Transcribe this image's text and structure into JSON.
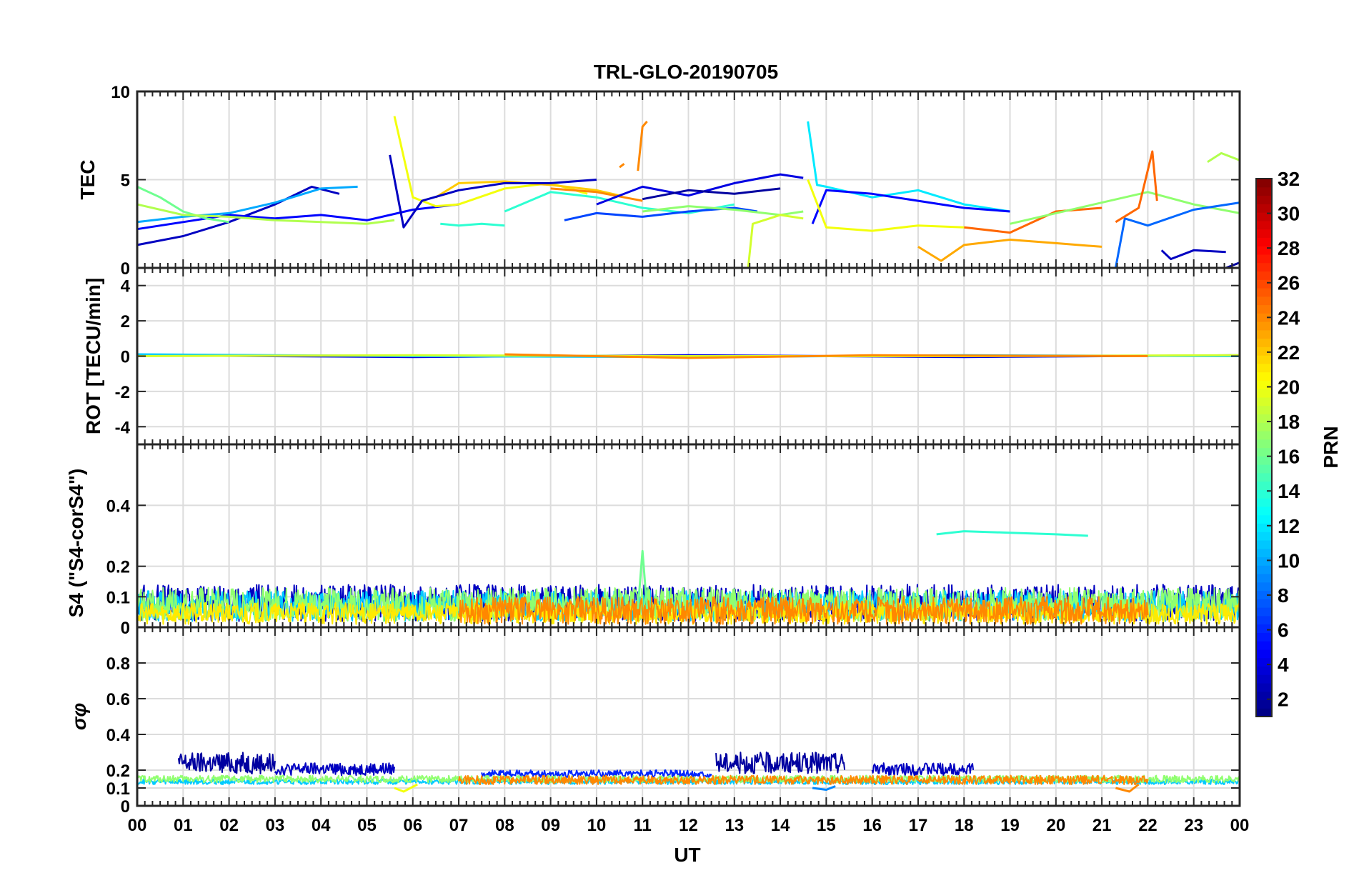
{
  "chart_data": {
    "type": "line",
    "title": "TRL-GLO-20190705",
    "xlabel": "UT",
    "x_ticks": [
      "00",
      "01",
      "02",
      "03",
      "04",
      "05",
      "06",
      "07",
      "08",
      "09",
      "10",
      "11",
      "12",
      "13",
      "14",
      "15",
      "16",
      "17",
      "18",
      "19",
      "20",
      "21",
      "22",
      "23",
      "00"
    ],
    "xlim": [
      0,
      24
    ],
    "grid": true,
    "colorbar": {
      "label": "PRN",
      "ticks": [
        "2",
        "4",
        "6",
        "8",
        "10",
        "12",
        "14",
        "16",
        "18",
        "20",
        "22",
        "24",
        "26",
        "28",
        "30",
        "32"
      ],
      "range": [
        1,
        32
      ],
      "colormap": "jet"
    },
    "panels": [
      {
        "id": "tec",
        "ylabel": "TEC",
        "ylim": [
          0,
          10
        ],
        "y_ticks": [
          "0",
          "5",
          "10"
        ],
        "tick_values": [
          0,
          5,
          10
        ],
        "series": [
          {
            "prn": 3,
            "x": [
              0,
              1,
              2,
              3,
              3.8,
              4.4
            ],
            "y": [
              1.3,
              1.8,
              2.6,
              3.6,
              4.6,
              4.2
            ]
          },
          {
            "prn": 5,
            "x": [
              0,
              1,
              2,
              3,
              4,
              5,
              6,
              7
            ],
            "y": [
              2.2,
              2.6,
              3.0,
              2.8,
              3.0,
              2.7,
              3.3,
              3.6
            ]
          },
          {
            "prn": 10,
            "x": [
              0,
              1,
              2,
              3,
              4,
              4.8
            ],
            "y": [
              2.6,
              2.9,
              3.1,
              3.7,
              4.5,
              4.6
            ]
          },
          {
            "prn": 16,
            "x": [
              0,
              0.5,
              1,
              1.5,
              2
            ],
            "y": [
              4.6,
              4.0,
              3.2,
              2.8,
              2.6
            ]
          },
          {
            "prn": 18,
            "x": [
              0,
              1,
              2,
              3,
              4,
              5,
              5.6
            ],
            "y": [
              3.6,
              3.0,
              2.9,
              2.7,
              2.6,
              2.5,
              2.7
            ]
          },
          {
            "prn": 20,
            "x": [
              5.6,
              6,
              6.5,
              7,
              8,
              9,
              9.8
            ],
            "y": [
              8.6,
              4.0,
              3.5,
              3.6,
              4.5,
              4.8,
              4.2
            ]
          },
          {
            "prn": 22,
            "x": [
              6.5,
              7,
              8,
              9,
              10,
              10.5
            ],
            "y": [
              4.0,
              4.8,
              4.9,
              4.7,
              4.4,
              4.1
            ]
          },
          {
            "prn": 3,
            "x": [
              5.5,
              5.8,
              6.2,
              7,
              8,
              9,
              10
            ],
            "y": [
              6.4,
              2.3,
              3.8,
              4.4,
              4.8,
              4.8,
              5.0
            ]
          },
          {
            "prn": 14,
            "x": [
              6.6,
              7,
              7.5,
              8
            ],
            "y": [
              2.5,
              2.4,
              2.5,
              2.4
            ]
          },
          {
            "prn": 14,
            "x": [
              8,
              9,
              10,
              11,
              12,
              13
            ],
            "y": [
              3.2,
              4.3,
              4.0,
              3.4,
              3.1,
              3.6
            ]
          },
          {
            "prn": 24,
            "x": [
              9,
              10,
              11
            ],
            "y": [
              4.5,
              4.3,
              3.8
            ]
          },
          {
            "prn": 24,
            "x": [
              10.5,
              10.6
            ],
            "y": [
              5.7,
              5.9
            ]
          },
          {
            "prn": 24,
            "x": [
              10.9,
              11.0,
              11.1
            ],
            "y": [
              5.5,
              8.0,
              8.3
            ]
          },
          {
            "prn": 7,
            "x": [
              9.3,
              10,
              11,
              12,
              13,
              13.5
            ],
            "y": [
              2.7,
              3.1,
              2.9,
              3.2,
              3.4,
              3.2
            ]
          },
          {
            "prn": 4,
            "x": [
              10,
              11,
              12,
              13,
              14,
              14.5
            ],
            "y": [
              3.6,
              4.6,
              4.1,
              4.8,
              5.3,
              5.1
            ]
          },
          {
            "prn": 2,
            "x": [
              11,
              12,
              13,
              14
            ],
            "y": [
              3.9,
              4.4,
              4.2,
              4.5
            ]
          },
          {
            "prn": 17,
            "x": [
              11,
              12,
              13,
              14,
              14.5
            ],
            "y": [
              3.2,
              3.5,
              3.3,
              3.0,
              3.2
            ]
          },
          {
            "prn": 19,
            "x": [
              13.3,
              13.4,
              14,
              14.5
            ],
            "y": [
              0.0,
              2.5,
              3.0,
              2.8
            ]
          },
          {
            "prn": 12,
            "x": [
              14.6,
              14.8,
              15,
              16,
              17,
              18,
              19
            ],
            "y": [
              8.3,
              4.7,
              4.6,
              4.0,
              4.4,
              3.6,
              3.2
            ]
          },
          {
            "prn": 5,
            "x": [
              14.7,
              15,
              16,
              17,
              18,
              19
            ],
            "y": [
              2.5,
              4.4,
              4.2,
              3.8,
              3.4,
              3.2
            ]
          },
          {
            "prn": 20,
            "x": [
              14.6,
              15,
              16,
              17,
              18
            ],
            "y": [
              5.0,
              2.3,
              2.1,
              2.4,
              2.3
            ]
          },
          {
            "prn": 23,
            "x": [
              17,
              17.5,
              18,
              19,
              20,
              21
            ],
            "y": [
              1.2,
              0.4,
              1.3,
              1.6,
              1.4,
              1.2
            ]
          },
          {
            "prn": 25,
            "x": [
              18,
              19,
              20,
              21
            ],
            "y": [
              2.3,
              2.0,
              3.2,
              3.4
            ]
          },
          {
            "prn": 17,
            "x": [
              19,
              20,
              21,
              22,
              23,
              24
            ],
            "y": [
              2.5,
              3.1,
              3.7,
              4.3,
              3.6,
              3.1
            ]
          },
          {
            "prn": 8,
            "x": [
              21.3,
              21.5,
              22,
              23,
              24
            ],
            "y": [
              0.0,
              2.8,
              2.4,
              3.3,
              3.7
            ]
          },
          {
            "prn": 25,
            "x": [
              21.3,
              21.8,
              22.1,
              22.2
            ],
            "y": [
              2.6,
              3.4,
              6.6,
              3.8
            ]
          },
          {
            "prn": 3,
            "x": [
              22.3,
              22.5,
              23,
              23.7
            ],
            "y": [
              1.0,
              0.5,
              1.0,
              0.9
            ]
          },
          {
            "prn": 18,
            "x": [
              23.3,
              23.6,
              24
            ],
            "y": [
              6.0,
              6.5,
              6.1
            ]
          },
          {
            "prn": 2,
            "x": [
              23.7,
              24
            ],
            "y": [
              0.0,
              0.3
            ]
          }
        ]
      },
      {
        "id": "rot",
        "ylabel": "ROT [TECU/min]",
        "ylim": [
          -5,
          5
        ],
        "y_ticks": [
          "-4",
          "-2",
          "0",
          "2",
          "4"
        ],
        "tick_values": [
          -4,
          -2,
          0,
          2,
          4
        ],
        "series": [
          {
            "prn": 4,
            "x": [
              0,
              6,
              12,
              18,
              24
            ],
            "y": [
              0.05,
              -0.05,
              0.05,
              -0.05,
              0.05
            ]
          },
          {
            "prn": 11,
            "x": [
              0,
              6,
              12,
              18,
              24
            ],
            "y": [
              0.1,
              0.0,
              -0.05,
              0.05,
              0.0
            ]
          },
          {
            "prn": 19,
            "x": [
              0,
              6,
              12,
              18,
              24
            ],
            "y": [
              0.0,
              0.05,
              0.0,
              0.0,
              0.05
            ]
          },
          {
            "prn": 24,
            "x": [
              8,
              12,
              16,
              22
            ],
            "y": [
              0.1,
              -0.1,
              0.05,
              0.0
            ]
          }
        ]
      },
      {
        "id": "s4",
        "ylabel": "S4 (\"S4-corS4\")",
        "ylim": [
          0,
          0.6
        ],
        "y_ticks": [
          "0",
          "0.1",
          "0.2",
          "0.4"
        ],
        "tick_values": [
          0,
          0.1,
          0.2,
          0.4
        ],
        "band_series": [
          {
            "prn": 3,
            "x": [
              0,
              24
            ],
            "y_low": 0.02,
            "y_high": 0.14
          },
          {
            "prn": 11,
            "x": [
              0,
              24
            ],
            "y_low": 0.02,
            "y_high": 0.12
          },
          {
            "prn": 17,
            "x": [
              0,
              24
            ],
            "y_low": 0.02,
            "y_high": 0.13
          },
          {
            "prn": 21,
            "x": [
              0,
              24
            ],
            "y_low": 0.01,
            "y_high": 0.08
          },
          {
            "prn": 24,
            "x": [
              7,
              22
            ],
            "y_low": 0.01,
            "y_high": 0.1
          }
        ],
        "series": [
          {
            "prn": 14,
            "x": [
              17.4,
              18,
              19,
              20,
              20.7
            ],
            "y": [
              0.305,
              0.315,
              0.31,
              0.305,
              0.3
            ]
          },
          {
            "prn": 16,
            "x": [
              10.9,
              11,
              11.1
            ],
            "y": [
              0.06,
              0.25,
              0.06
            ]
          }
        ]
      },
      {
        "id": "sigma",
        "ylabel": "σφ",
        "ylim": [
          0,
          1
        ],
        "y_ticks": [
          "0",
          "0.1",
          "0.2",
          "0.4",
          "0.6",
          "0.8"
        ],
        "tick_values": [
          0,
          0.1,
          0.2,
          0.4,
          0.6,
          0.8
        ],
        "band_series": [
          {
            "prn": 2,
            "x": [
              0.9,
              3
            ],
            "y_low": 0.18,
            "y_high": 0.3
          },
          {
            "prn": 2,
            "x": [
              12.6,
              15.4
            ],
            "y_low": 0.18,
            "y_high": 0.3
          },
          {
            "prn": 3,
            "x": [
              3,
              5.6
            ],
            "y_low": 0.17,
            "y_high": 0.24
          },
          {
            "prn": 3,
            "x": [
              16,
              18.2
            ],
            "y_low": 0.17,
            "y_high": 0.24
          },
          {
            "prn": 6,
            "x": [
              7.5,
              12.5
            ],
            "y_low": 0.16,
            "y_high": 0.2
          },
          {
            "prn": 11,
            "x": [
              0,
              24
            ],
            "y_low": 0.12,
            "y_high": 0.15
          },
          {
            "prn": 17,
            "x": [
              0,
              24
            ],
            "y_low": 0.13,
            "y_high": 0.17
          },
          {
            "prn": 24,
            "x": [
              7,
              22
            ],
            "y_low": 0.12,
            "y_high": 0.17
          }
        ],
        "series": [
          {
            "prn": 20,
            "x": [
              5.6,
              5.8,
              6.1
            ],
            "y": [
              0.1,
              0.08,
              0.12
            ]
          },
          {
            "prn": 9,
            "x": [
              14.7,
              15,
              15.2
            ],
            "y": [
              0.1,
              0.09,
              0.11
            ]
          },
          {
            "prn": 24,
            "x": [
              21.3,
              21.6,
              21.8
            ],
            "y": [
              0.1,
              0.08,
              0.12
            ]
          }
        ]
      }
    ]
  }
}
